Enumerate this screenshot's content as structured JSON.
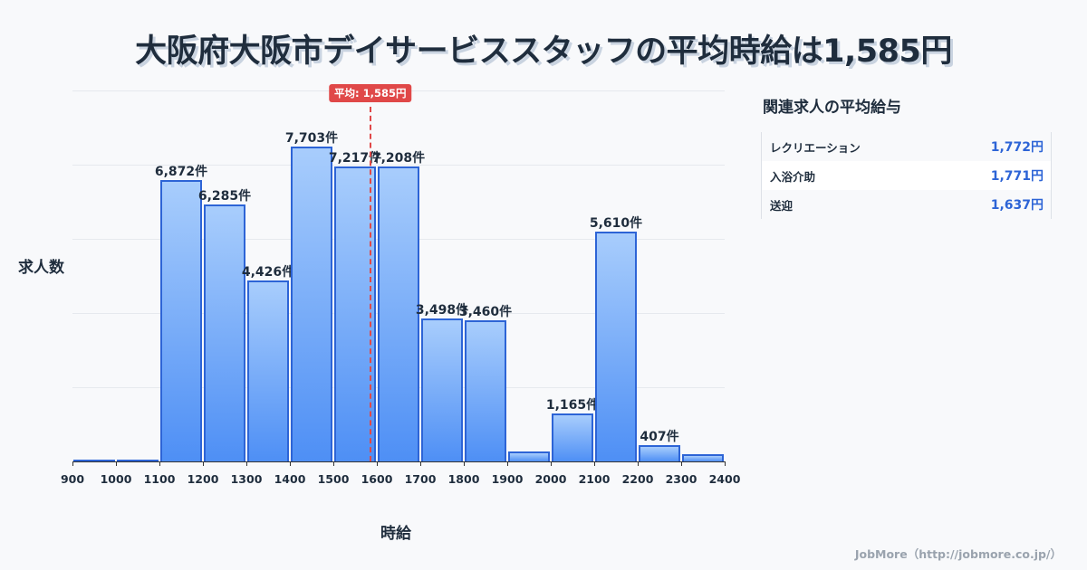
{
  "title": "大阪府大阪市デイサービススタッフの平均時給は1,585円",
  "chart": {
    "ylabel": "求人数",
    "xlabel": "時給",
    "average_badge": "平均: 1,585円",
    "average_value": 1585,
    "bars": [
      {
        "bin": 900,
        "count": 20,
        "label": ""
      },
      {
        "bin": 1000,
        "count": 40,
        "label": ""
      },
      {
        "bin": 1100,
        "count": 6872,
        "label": "6,872件"
      },
      {
        "bin": 1200,
        "count": 6285,
        "label": "6,285件"
      },
      {
        "bin": 1300,
        "count": 4426,
        "label": "4,426件"
      },
      {
        "bin": 1400,
        "count": 7703,
        "label": "7,703件"
      },
      {
        "bin": 1500,
        "count": 7217,
        "label": "7,217件"
      },
      {
        "bin": 1600,
        "count": 7208,
        "label": "7,208件"
      },
      {
        "bin": 1700,
        "count": 3498,
        "label": "3,498件"
      },
      {
        "bin": 1800,
        "count": 3460,
        "label": "3,460件"
      },
      {
        "bin": 1900,
        "count": 240,
        "label": ""
      },
      {
        "bin": 2000,
        "count": 1165,
        "label": "1,165件"
      },
      {
        "bin": 2100,
        "count": 5610,
        "label": "5,610件"
      },
      {
        "bin": 2200,
        "count": 407,
        "label": "407件"
      },
      {
        "bin": 2300,
        "count": 180,
        "label": ""
      }
    ],
    "xticks": [
      "900",
      "1000",
      "1100",
      "1200",
      "1300",
      "1400",
      "1500",
      "1600",
      "1700",
      "1800",
      "1900",
      "2000",
      "2100",
      "2200",
      "2300",
      "2400"
    ]
  },
  "chart_data": {
    "type": "bar",
    "title": "大阪府大阪市デイサービススタッフの平均時給は1,585円",
    "xlabel": "時給",
    "ylabel": "求人数",
    "categories": [
      "900",
      "1000",
      "1100",
      "1200",
      "1300",
      "1400",
      "1500",
      "1600",
      "1700",
      "1800",
      "1900",
      "2000",
      "2100",
      "2200",
      "2300"
    ],
    "values": [
      20,
      40,
      6872,
      6285,
      4426,
      7703,
      7217,
      7208,
      3498,
      3460,
      240,
      1165,
      5610,
      407,
      180
    ],
    "bin_width": 100,
    "xlim": [
      900,
      2400
    ],
    "ylim": [
      0,
      9070
    ],
    "grid": true,
    "annotations": [
      {
        "type": "vline",
        "x": 1585,
        "label": "平均: 1,585円",
        "color": "#e04848"
      }
    ],
    "bar_labels_unit": "件",
    "legend": null
  },
  "side_panel": {
    "title": "関連求人の平均給与",
    "rows": [
      {
        "name": "レクリエーション",
        "value": "1,772円"
      },
      {
        "name": "入浴介助",
        "value": "1,771円"
      },
      {
        "name": "送迎",
        "value": "1,637円"
      }
    ]
  },
  "footer": "JobMore（http://jobmore.co.jp/）",
  "colors": {
    "bar_top": "#a8cdfc",
    "bar_bottom": "#4e8ff5",
    "bar_border": "#2d64d6",
    "average": "#e04848",
    "value_text": "#2d64d6",
    "text": "#1f2d3d"
  }
}
